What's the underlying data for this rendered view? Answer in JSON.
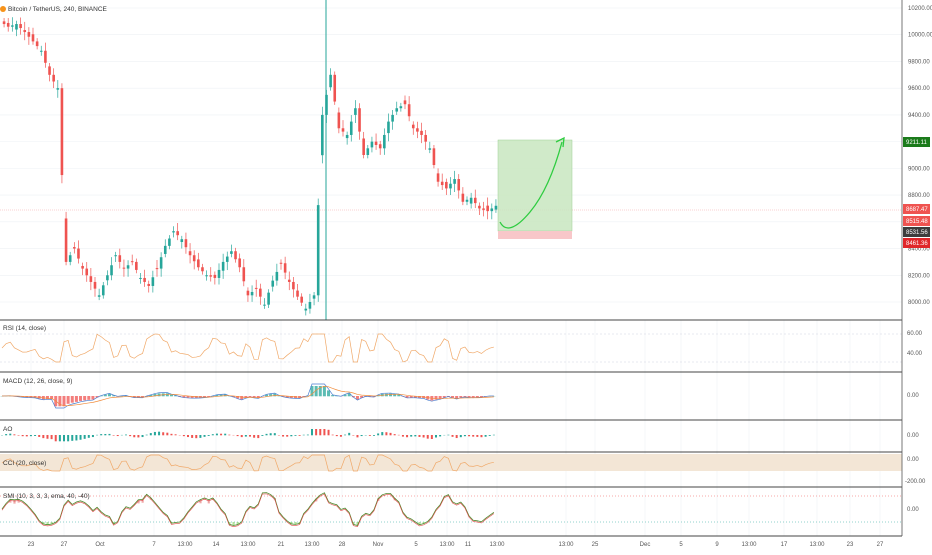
{
  "header": {
    "symbol_title": "Bitcoin / TetherUS, 240, BINANCE"
  },
  "price_axis": {
    "ticks": [
      "10200.00",
      "10000.00",
      "9800.00",
      "9600.00",
      "9400.00",
      "9200.00",
      "9000.00",
      "8800.00",
      "8600.00",
      "8400.00",
      "8200.00",
      "8000.00"
    ],
    "price_tags": [
      {
        "label": "9211.11",
        "color": "#1b7b1b"
      },
      {
        "label": "8687.47",
        "color": "#ef5350"
      },
      {
        "label": "8515.48",
        "color": "#ef5350"
      },
      {
        "label": "8531.56",
        "color": "#3d3d3d"
      },
      {
        "label": "8461.36",
        "color": "#e0262a"
      }
    ]
  },
  "time_axis": {
    "ticks": [
      "23",
      "27",
      "Oct",
      "7",
      "13:00",
      "14",
      "13:00",
      "21",
      "13:00",
      "28",
      "Nov",
      "5",
      "13:00",
      "11",
      "13:00",
      "13:00",
      "25",
      "Dec",
      "5",
      "9",
      "13:00",
      "17",
      "13:00",
      "23",
      "27"
    ]
  },
  "panels": {
    "rsi": {
      "title": "RSI (14, close)",
      "ticks": [
        "60.00",
        "40.00"
      ]
    },
    "macd": {
      "title": "MACD (12, 26, close, 9)",
      "ticks": [
        "0.00"
      ]
    },
    "ao": {
      "title": "AO",
      "ticks": [
        "0.00"
      ]
    },
    "cci": {
      "title": "CCI (20, close)",
      "ticks": [
        "0.00",
        "-200.00"
      ]
    },
    "smi": {
      "title": "SMI (10, 3, 3, 3, ema, 40, -40)",
      "ticks": [
        "0.00"
      ]
    }
  },
  "colors": {
    "up": "#26a69a",
    "down": "#ef5350",
    "target_zone": "#c8e6c0",
    "stop_zone": "#f8c7c9",
    "projection_arrow": "#2ecc40",
    "rsi_line": "#f0a868",
    "cci_band": "#f3e6d6",
    "macd_line": "#4a7fd0",
    "signal_line": "#f08c3c"
  },
  "chart_data": {
    "type": "candlestick",
    "title": "Bitcoin / TetherUS, 240, BINANCE",
    "interval": "240",
    "ylim": [
      7950,
      10250
    ],
    "key_prices": {
      "target": 9211.11,
      "last_1": 8687.47,
      "last_2": 8515.48,
      "reference": 8531.56,
      "stop": 8461.36
    },
    "closes_approx": [
      10060,
      10080,
      10020,
      9950,
      9880,
      9700,
      9600,
      8300,
      8400,
      8250,
      8150,
      8050,
      8200,
      8350,
      8250,
      8300,
      8180,
      8120,
      8250,
      8420,
      8530,
      8470,
      8350,
      8260,
      8200,
      8180,
      8300,
      8380,
      8260,
      8050,
      8100,
      7980,
      8160,
      8290,
      8150,
      8040,
      7950,
      8050,
      9400,
      9700,
      9300,
      9250,
      9450,
      9100,
      9200,
      9150,
      9350,
      9450,
      9480,
      9300,
      9250,
      9150,
      8900,
      8850,
      8920,
      8750,
      8780,
      8700,
      8680,
      8720
    ],
    "annotations": [
      {
        "type": "long_position",
        "entry": 8531.56,
        "target": 9211.11,
        "stop": 8461.36
      },
      {
        "type": "projection_arrow",
        "from": 8531.56,
        "to": 9211.11
      }
    ]
  }
}
